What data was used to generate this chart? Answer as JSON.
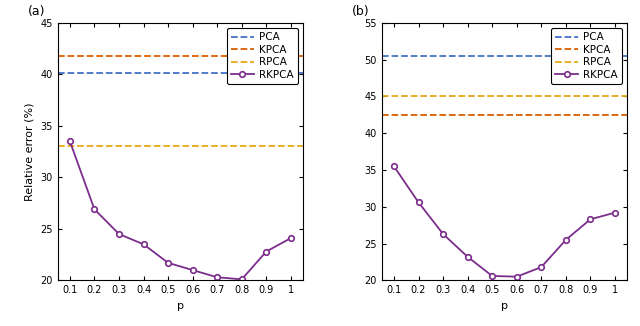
{
  "panel_a": {
    "title": "(a)",
    "pca_val": 40.1,
    "kpca_val": 41.8,
    "rpca_val": 33.0,
    "rkpca_x": [
      0.1,
      0.2,
      0.3,
      0.4,
      0.5,
      0.6,
      0.7,
      0.8,
      0.9,
      1.0
    ],
    "rkpca_y": [
      33.5,
      26.9,
      24.5,
      23.5,
      21.7,
      21.0,
      20.3,
      20.1,
      22.8,
      24.1
    ],
    "ylim": [
      20,
      45
    ],
    "yticks": [
      20,
      25,
      30,
      35,
      40,
      45
    ],
    "xlabel": "p",
    "ylabel": "Relative error (%)"
  },
  "panel_b": {
    "title": "(b)",
    "pca_val": 50.5,
    "kpca_val": 42.5,
    "rpca_val": 45.0,
    "rkpca_x": [
      0.1,
      0.2,
      0.3,
      0.4,
      0.5,
      0.6,
      0.7,
      0.8,
      0.9,
      1.0
    ],
    "rkpca_y": [
      35.5,
      30.6,
      26.3,
      23.2,
      20.6,
      20.5,
      21.8,
      25.5,
      28.3,
      29.2
    ],
    "ylim": [
      20,
      55
    ],
    "yticks": [
      20,
      25,
      30,
      35,
      40,
      45,
      50,
      55
    ],
    "xlabel": "p",
    "ylabel": "Relative error (%)"
  },
  "colors": {
    "pca": "#4472c4",
    "kpca": "#d95f02",
    "rpca": "#e6a817",
    "rkpca": "#7b2d8b"
  },
  "xticks": [
    0.1,
    0.2,
    0.3,
    0.4,
    0.5,
    0.6,
    0.7,
    0.8,
    0.9,
    1.0
  ],
  "xtick_labels": [
    "0.1",
    "0.2",
    "0.3",
    "0.4",
    "0.5",
    "0.6",
    "0.7",
    "0.8",
    "0.9",
    "1"
  ],
  "tick_fontsize": 7,
  "label_fontsize": 8,
  "legend_fontsize": 7.5,
  "title_fontsize": 9
}
